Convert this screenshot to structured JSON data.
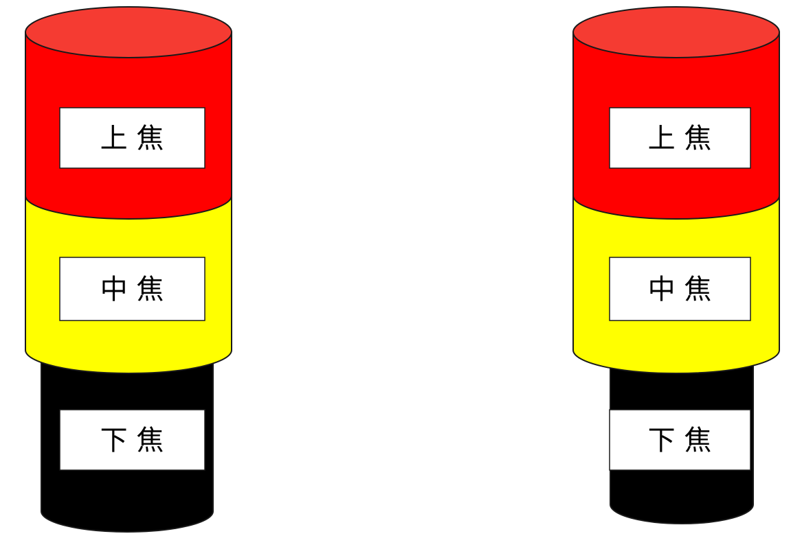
{
  "colors": {
    "upper": "#ff0000",
    "upper_top": "#f53b32",
    "middle": "#ffff00",
    "lower": "#000000",
    "outline": "#1a1a1a",
    "label_box": "#ffffff"
  },
  "columns": [
    {
      "upper_label": "上 焦",
      "middle_label": "中 焦",
      "lower_label": "下 焦"
    },
    {
      "upper_label": "上 焦",
      "middle_label": "中 焦",
      "lower_label": "下 焦"
    }
  ]
}
